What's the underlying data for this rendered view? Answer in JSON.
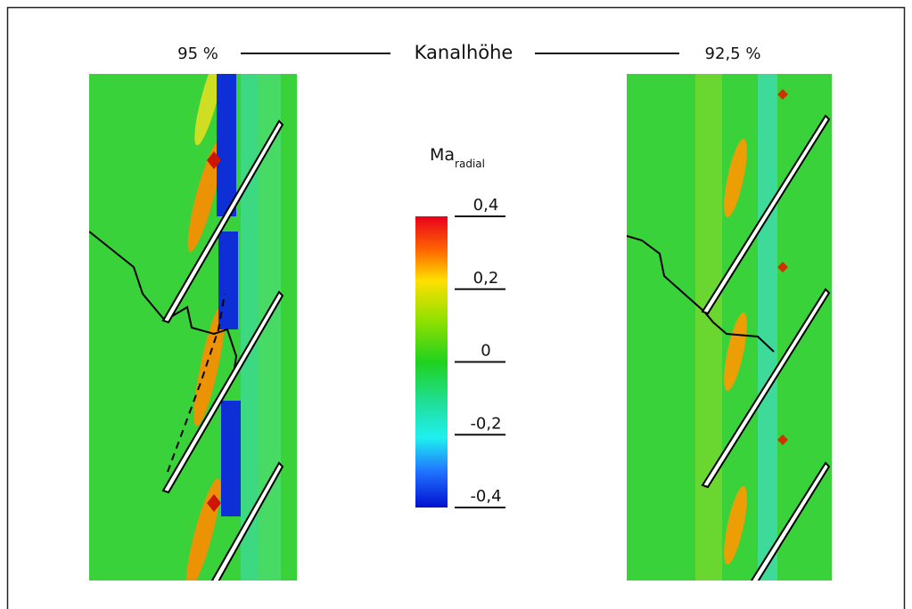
{
  "header": {
    "left_label": "95 %",
    "title": "Kanalhöhe",
    "right_label": "92,5 %"
  },
  "colorbar": {
    "title": "Ma",
    "subscript": "radial",
    "lim": [
      -0.4,
      0.4
    ],
    "ticks": [
      {
        "value": 0.4,
        "label": "0,4"
      },
      {
        "value": 0.2,
        "label": "0,2"
      },
      0,
      {
        "value": -0.2,
        "label": "-0,2"
      },
      {
        "value": -0.4,
        "label": "-0,4"
      }
    ]
  }
}
